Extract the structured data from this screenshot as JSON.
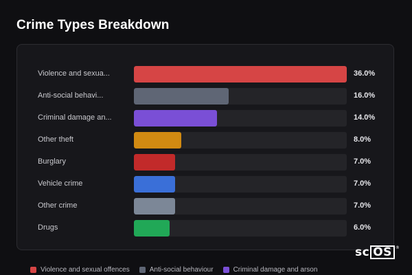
{
  "title": "Crime Types Breakdown",
  "chart_data": {
    "type": "bar",
    "orientation": "horizontal",
    "title": "Crime Types Breakdown",
    "xlim": [
      0,
      36
    ],
    "categories": [
      "Violence and sexua...",
      "Anti-social behavi...",
      "Criminal damage an...",
      "Other theft",
      "Burglary",
      "Vehicle crime",
      "Other crime",
      "Drugs"
    ],
    "values": [
      36.0,
      16.0,
      14.0,
      8.0,
      7.0,
      7.0,
      7.0,
      6.0
    ],
    "value_labels": [
      "36.0%",
      "16.0%",
      "14.0%",
      "8.0%",
      "7.0%",
      "7.0%",
      "7.0%",
      "6.0%"
    ],
    "colors": [
      "#d64545",
      "#5f6675",
      "#7a4fd6",
      "#d18a12",
      "#c22a2a",
      "#3a6fd8",
      "#7c8797",
      "#21a857"
    ],
    "legend": [
      {
        "label": "Violence and sexual offences",
        "color": "#d64545"
      },
      {
        "label": "Anti-social behaviour",
        "color": "#5f6675"
      },
      {
        "label": "Criminal damage and arson",
        "color": "#7a4fd6"
      }
    ],
    "legend_position": "bottom"
  },
  "logo": {
    "prefix": "sc",
    "boxed": "OS",
    "mark": "®"
  }
}
